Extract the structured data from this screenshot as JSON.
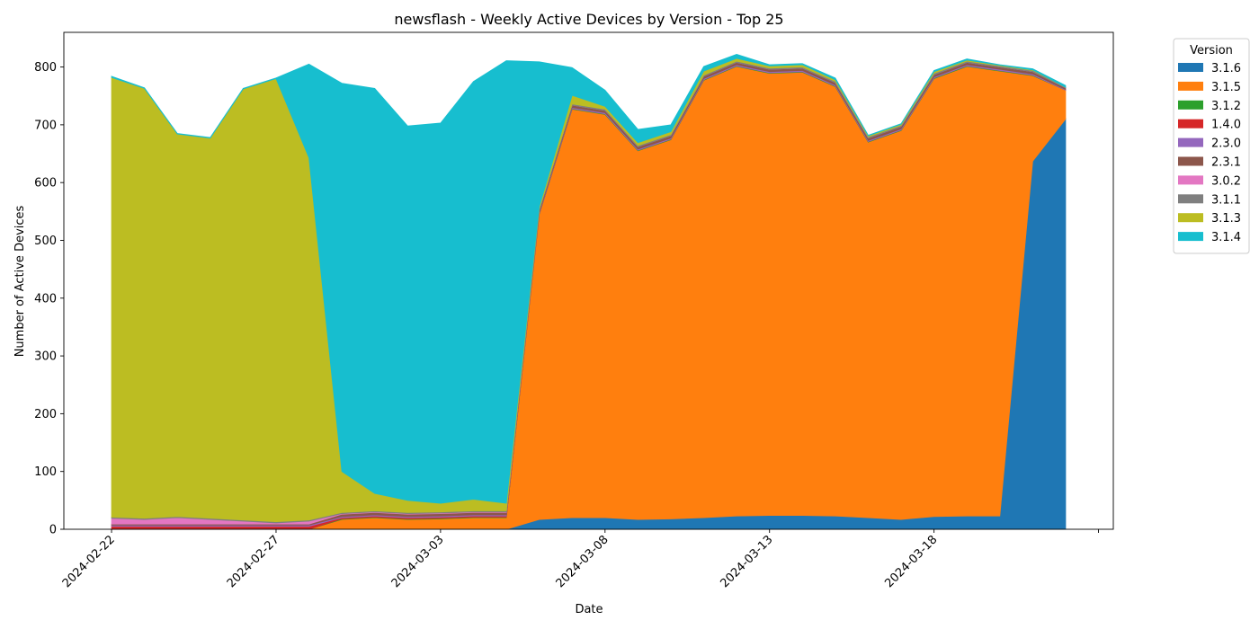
{
  "chart_data": {
    "type": "area",
    "stacked": true,
    "title": "newsflash - Weekly Active Devices by Version - Top 25",
    "xlabel": "Date",
    "ylabel": "Number of Active Devices",
    "ylim": [
      0,
      860
    ],
    "yticks": [
      0,
      100,
      200,
      300,
      400,
      500,
      600,
      700,
      800
    ],
    "xticks": [
      "2024-02-22",
      "2024-02-27",
      "2024-03-03",
      "2024-03-08",
      "2024-03-13",
      "2024-03-18"
    ],
    "x_dates": [
      "2024-02-22",
      "2024-02-23",
      "2024-02-24",
      "2024-02-25",
      "2024-02-26",
      "2024-02-27",
      "2024-02-28",
      "2024-02-29",
      "2024-03-01",
      "2024-03-02",
      "2024-03-03",
      "2024-03-04",
      "2024-03-05",
      "2024-03-06",
      "2024-03-07",
      "2024-03-08",
      "2024-03-09",
      "2024-03-10",
      "2024-03-11",
      "2024-03-12",
      "2024-03-13",
      "2024-03-14",
      "2024-03-15",
      "2024-03-16",
      "2024-03-17",
      "2024-03-18",
      "2024-03-19",
      "2024-03-20",
      "2024-03-21",
      "2024-03-22"
    ],
    "legend_title": "Version",
    "legend_position": "outside-right",
    "grid": false,
    "series": [
      {
        "name": "3.1.6",
        "color": "#1f77b4",
        "values": [
          0,
          0,
          0,
          0,
          0,
          0,
          0,
          0,
          0,
          0,
          0,
          0,
          0,
          17,
          20,
          20,
          17,
          18,
          20,
          23,
          24,
          24,
          23,
          20,
          17,
          22,
          23,
          23,
          637,
          710
        ]
      },
      {
        "name": "3.1.5",
        "color": "#ff7f0e",
        "values": [
          0,
          0,
          0,
          0,
          0,
          0,
          0,
          17,
          20,
          17,
          18,
          20,
          20,
          528,
          707,
          698,
          638,
          656,
          757,
          778,
          765,
          767,
          743,
          650,
          673,
          758,
          778,
          770,
          148,
          50
        ]
      },
      {
        "name": "3.1.2",
        "color": "#2ca02c",
        "values": [
          0,
          0,
          0,
          0,
          0,
          0,
          0,
          1,
          1,
          1,
          1,
          1,
          1,
          1,
          1,
          1,
          1,
          1,
          1,
          1,
          1,
          1,
          1,
          1,
          1,
          1,
          1,
          1,
          1,
          0
        ]
      },
      {
        "name": "1.4.0",
        "color": "#d62728",
        "values": [
          5,
          5,
          5,
          5,
          5,
          5,
          5,
          2,
          2,
          2,
          2,
          2,
          2,
          0,
          0,
          0,
          0,
          0,
          0,
          0,
          0,
          0,
          0,
          0,
          0,
          0,
          0,
          0,
          0,
          0
        ]
      },
      {
        "name": "2.3.0",
        "color": "#9467bd",
        "values": [
          2,
          2,
          2,
          2,
          2,
          2,
          2,
          2,
          2,
          2,
          2,
          2,
          2,
          2,
          2,
          2,
          2,
          2,
          2,
          2,
          2,
          2,
          2,
          2,
          2,
          2,
          2,
          2,
          2,
          1
        ]
      },
      {
        "name": "2.3.1",
        "color": "#8c564b",
        "values": [
          2,
          2,
          2,
          2,
          2,
          2,
          2,
          4,
          4,
          4,
          4,
          4,
          4,
          4,
          4,
          4,
          4,
          4,
          4,
          4,
          4,
          4,
          4,
          4,
          4,
          4,
          4,
          4,
          4,
          3
        ]
      },
      {
        "name": "3.0.2",
        "color": "#e377c2",
        "values": [
          10,
          8,
          11,
          8,
          5,
          2,
          5,
          1,
          1,
          1,
          1,
          1,
          1,
          0,
          0,
          0,
          0,
          0,
          0,
          0,
          0,
          0,
          0,
          0,
          0,
          0,
          0,
          0,
          0,
          0
        ]
      },
      {
        "name": "3.1.1",
        "color": "#7f7f7f",
        "values": [
          2,
          2,
          2,
          2,
          2,
          2,
          2,
          2,
          2,
          2,
          2,
          2,
          2,
          2,
          2,
          2,
          2,
          2,
          2,
          2,
          2,
          2,
          2,
          2,
          2,
          2,
          2,
          2,
          2,
          1
        ]
      },
      {
        "name": "3.1.3",
        "color": "#bcbd22",
        "values": [
          761,
          744,
          662,
          658,
          746,
          767,
          627,
          71,
          30,
          21,
          15,
          20,
          13,
          4,
          15,
          5,
          5,
          5,
          7,
          5,
          4,
          4,
          3,
          2,
          2,
          3,
          2,
          1,
          1,
          0
        ]
      },
      {
        "name": "3.1.4",
        "color": "#17becf",
        "values": [
          2,
          1,
          1,
          1,
          1,
          1,
          162,
          672,
          701,
          648,
          658,
          723,
          766,
          251,
          48,
          28,
          23,
          12,
          8,
          7,
          2,
          2,
          3,
          1,
          1,
          2,
          2,
          1,
          2,
          3
        ]
      }
    ]
  }
}
